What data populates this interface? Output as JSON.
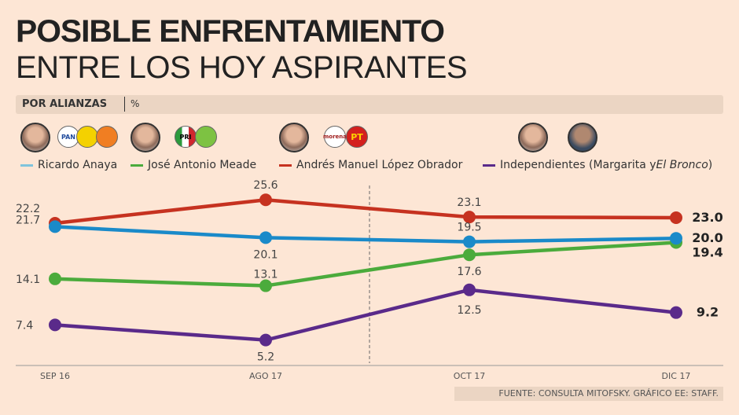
{
  "title_line1": "POSIBLE ENFRENTAMIENTO",
  "title_line2": "ENTRE LOS HOY ASPIRANTES",
  "subtitle": "POR ALIANZAS",
  "unit": "%",
  "logos": {
    "pan": "PAN",
    "pri": "PRI",
    "morena": "morena",
    "pt": "PT"
  },
  "source": "FUENTE: CONSULTA MITOFSKY.  GRÁFICO EE: STAFF.",
  "chart_data": {
    "type": "line",
    "categories": [
      "SEP 16",
      "AGO 17",
      "OCT 17",
      "DIC 17"
    ],
    "ylim": [
      1.5,
      27.8
    ],
    "grid": false,
    "legend_placement": "top",
    "series": [
      {
        "name": "Ricardo Anaya",
        "color": "#1a8ac9",
        "values": [
          21.7,
          20.1,
          19.5,
          20.0
        ]
      },
      {
        "name": "José Antonio Meade",
        "color": "#4bab3c",
        "values": [
          14.1,
          13.1,
          17.6,
          19.4
        ]
      },
      {
        "name": "Andrés Manuel López Obrador",
        "color": "#c63220",
        "values": [
          22.2,
          25.6,
          23.1,
          23.0
        ]
      },
      {
        "name": "Independientes (Margarita y El Bronco)",
        "name_plain": "Independientes (Margarita y ",
        "name_italic": "El Bronco",
        "name_end": ")",
        "color": "#5a2a8a",
        "values": [
          7.4,
          5.2,
          12.5,
          9.2
        ]
      }
    ]
  }
}
